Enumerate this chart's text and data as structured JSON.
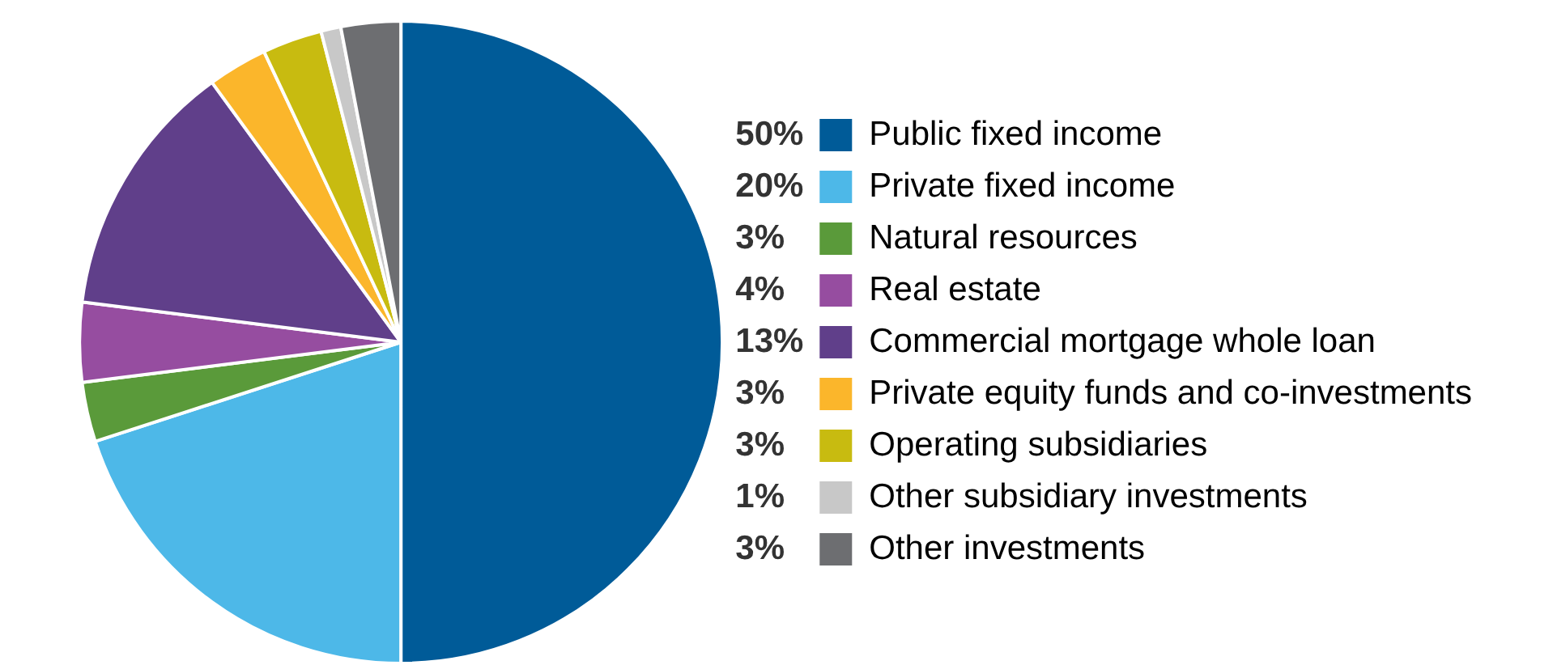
{
  "chart_data": {
    "type": "pie",
    "categories": [
      "Public fixed income",
      "Private fixed income",
      "Natural resources",
      "Real estate",
      "Commercial mortgage whole loan",
      "Private equity funds and co-investments",
      "Operating subsidiaries",
      "Other subsidiary investments",
      "Other investments"
    ],
    "values": [
      50,
      20,
      3,
      4,
      13,
      3,
      3,
      1,
      3
    ],
    "value_labels": [
      "50%",
      "20%",
      "3%",
      "4%",
      "13%",
      "3%",
      "3%",
      "1%",
      "3%"
    ],
    "colors": [
      "#005b98",
      "#4db8e8",
      "#5a9a3a",
      "#964da0",
      "#603f8a",
      "#fbb62b",
      "#c8bb10",
      "#c8c8c8",
      "#6d6e71"
    ],
    "legend": "right"
  }
}
